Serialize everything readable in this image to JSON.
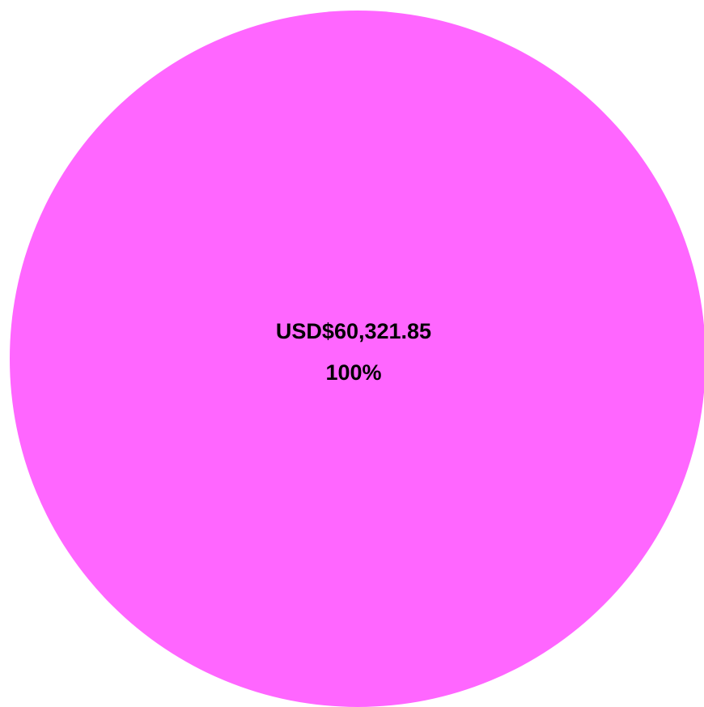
{
  "chart_data": {
    "type": "pie",
    "values": [
      100
    ],
    "value_labels": [
      "100%"
    ],
    "amount_labels": [
      "USD$60,321.85"
    ],
    "colors": [
      "#ff66ff"
    ]
  }
}
